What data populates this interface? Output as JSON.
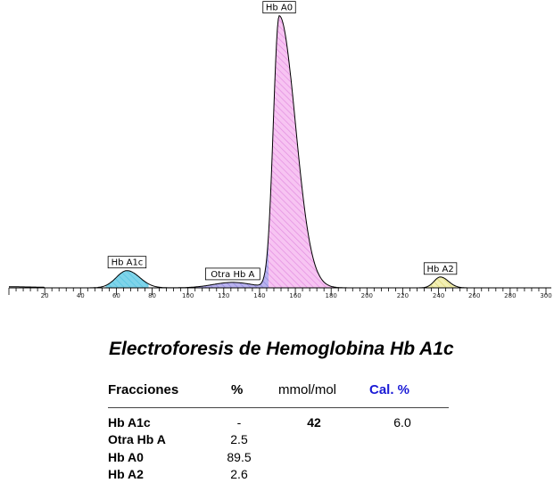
{
  "chart_data": {
    "type": "area",
    "xlim": [
      0,
      300
    ],
    "x_ticks": [
      "20",
      "40",
      "60",
      "80",
      "100",
      "120",
      "140",
      "160",
      "180",
      "200",
      "220",
      "240",
      "260",
      "280",
      "300"
    ],
    "peaks": [
      {
        "label": "Hb A1c",
        "center": 66,
        "height": 19,
        "sigma_left": 6,
        "sigma_right": 7,
        "range": [
          54,
          78
        ],
        "color": "#2bb5d6",
        "fill": "#7fd4ea"
      },
      {
        "label": "Otra Hb A",
        "center": 125,
        "height": 6,
        "sigma_left": 11,
        "sigma_right": 11,
        "range": [
          100,
          145
        ],
        "color": "#6a5acd",
        "fill": "#b9b3ef"
      },
      {
        "label": "Hb A0",
        "center": 151,
        "height": 300,
        "sigma_left": 3.3,
        "sigma_right": 9,
        "range": [
          145,
          186
        ],
        "color": "#d15fd1",
        "fill": "#f7c4f2"
      },
      {
        "label": "Hb A2",
        "center": 241,
        "height": 12,
        "sigma_left": 3.5,
        "sigma_right": 4.5,
        "range": [
          233,
          250
        ],
        "color": "#c9c23a",
        "fill": "#f3f0b5"
      }
    ],
    "ylim": [
      0,
      310
    ]
  },
  "report": {
    "title": "Electroforesis de Hemoglobina Hb A1c",
    "headers": {
      "fracciones": "Fracciones",
      "pct": "%",
      "mmol": "mmol/mol",
      "cal": "Cal. %"
    },
    "rows": [
      {
        "name": "Hb A1c",
        "pct": "-",
        "mmol": "42",
        "cal": "6.0"
      },
      {
        "name": "Otra Hb A",
        "pct": "2.5",
        "mmol": "",
        "cal": ""
      },
      {
        "name": "Hb A0",
        "pct": "89.5",
        "mmol": "",
        "cal": ""
      },
      {
        "name": "Hb A2",
        "pct": "2.6",
        "mmol": "",
        "cal": ""
      }
    ]
  }
}
